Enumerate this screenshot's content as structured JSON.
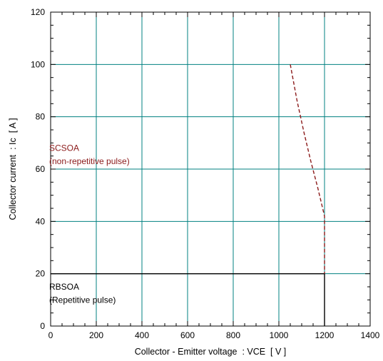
{
  "chart_data": {
    "type": "line",
    "title": "",
    "xlabel": "Collector - Emitter voltage  : VCE  [ V ]",
    "ylabel": "Collector current  : Ic  [ A ]",
    "xlim": [
      0,
      1400
    ],
    "ylim": [
      0,
      120
    ],
    "x_ticks": [
      0,
      200,
      400,
      600,
      800,
      1000,
      1200,
      1400
    ],
    "y_ticks": [
      0,
      20,
      40,
      60,
      80,
      100,
      120
    ],
    "x_tick_labels": [
      "0",
      "200",
      "400",
      "600",
      "800",
      "1000",
      "1200",
      "1400"
    ],
    "y_tick_labels": [
      "0",
      "20",
      "40",
      "60",
      "80",
      "100",
      "120"
    ],
    "grid": true,
    "minor_ticks": {
      "x_step": 50,
      "y_step": 5
    },
    "colors": {
      "grid": "#008080",
      "rbsoa": "#000000",
      "scsoa": "#8B1A1A",
      "frame": "#000000"
    },
    "series": [
      {
        "name": "RBSOA",
        "style": "solid",
        "x": [
          0,
          1200,
          1200
        ],
        "y": [
          20,
          20,
          0
        ]
      },
      {
        "name": "SCSOA",
        "style": "dashed",
        "x": [
          1050,
          1080,
          1110,
          1140,
          1170,
          1200,
          1200
        ],
        "y": [
          100,
          86,
          74,
          63,
          53,
          42,
          20
        ]
      }
    ],
    "annotations": [
      {
        "text": "SCSOA",
        "series": "SCSOA",
        "x": 375,
        "y": 68
      },
      {
        "text": "(non-repetitive pulse)",
        "series": "SCSOA",
        "x": 375,
        "y": 63
      },
      {
        "text": "RBSOA",
        "series": "RBSOA",
        "x": 375,
        "y": 15
      },
      {
        "text": "(Repetitive pulse)",
        "series": "RBSOA",
        "x": 375,
        "y": 10
      }
    ]
  }
}
